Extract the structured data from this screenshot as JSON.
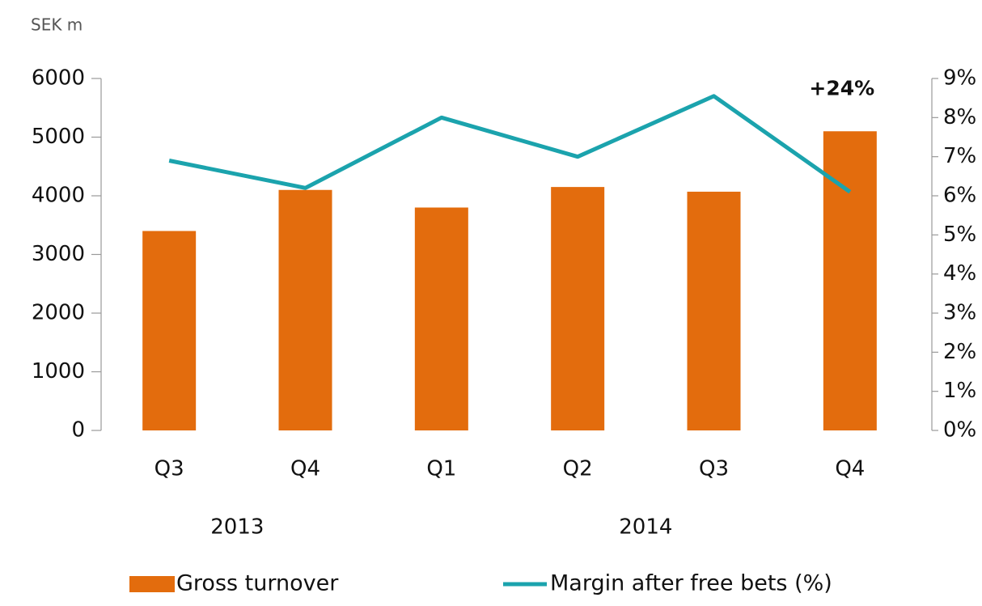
{
  "chart_data": {
    "type": "bar",
    "y_axis_label": "SEK m",
    "categories": [
      "Q3",
      "Q4",
      "Q1",
      "Q2",
      "Q3",
      "Q4"
    ],
    "groups": [
      {
        "label": "2013",
        "count": 2
      },
      {
        "label": "2014",
        "count": 4
      }
    ],
    "series": [
      {
        "name": "Gross turnover",
        "type": "bar",
        "color": "#e36c0d",
        "axis": "y",
        "values": [
          3400,
          4100,
          3800,
          4150,
          4070,
          5100
        ]
      },
      {
        "name": "Margin after free bets (%)",
        "type": "line",
        "color": "#1ba3ad",
        "axis": "y2",
        "values": [
          6.9,
          6.2,
          8.0,
          7.0,
          8.55,
          6.1
        ]
      }
    ],
    "annotations": [
      {
        "text": "+24%",
        "category": 5
      }
    ],
    "ylim": [
      0,
      6000
    ],
    "yticks": [
      0,
      1000,
      2000,
      3000,
      4000,
      5000,
      6000
    ],
    "y2lim": [
      0,
      9
    ],
    "y2ticks": [
      {
        "value": 0,
        "label": "0%"
      },
      {
        "value": 1,
        "label": "1%"
      },
      {
        "value": 2,
        "label": "2%"
      },
      {
        "value": 3,
        "label": "3%"
      },
      {
        "value": 4,
        "label": "4%"
      },
      {
        "value": 5,
        "label": "5%"
      },
      {
        "value": 6,
        "label": "6%"
      },
      {
        "value": 7,
        "label": "7%"
      },
      {
        "value": 8,
        "label": "8%"
      },
      {
        "value": 9,
        "label": "9%"
      }
    ],
    "grid": false,
    "legend": "bottom"
  }
}
